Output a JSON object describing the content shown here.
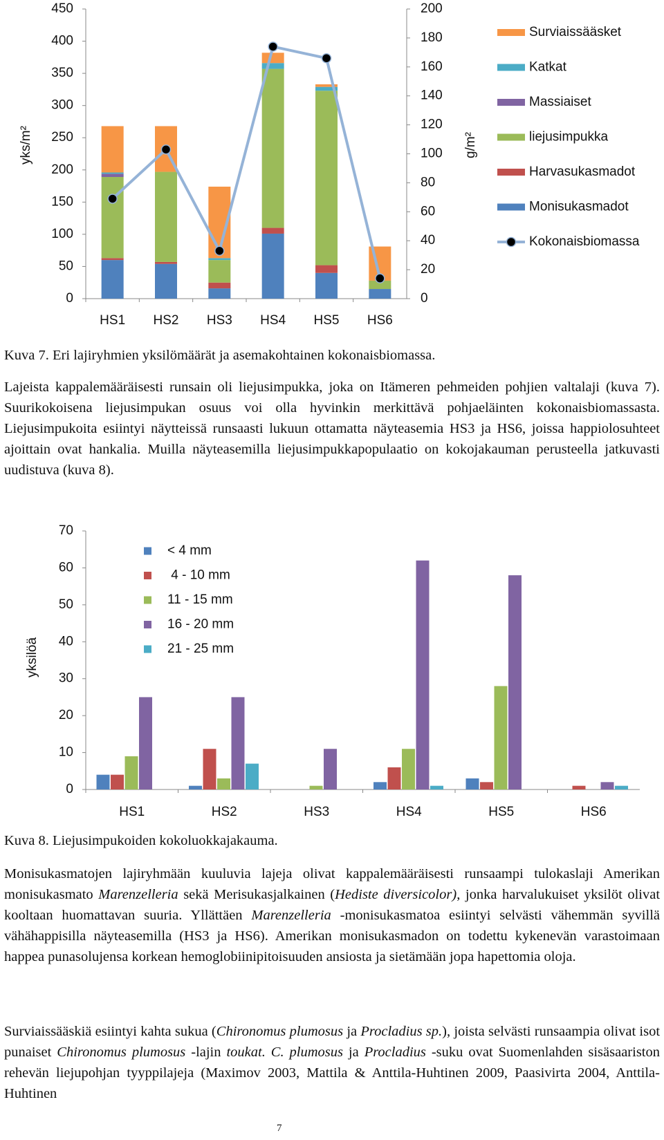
{
  "chart_data": [
    {
      "type": "bar",
      "stacked": true,
      "ylabel": "yks/m²",
      "y2label": "g/m²",
      "categories": [
        "HS1",
        "HS2",
        "HS3",
        "HS4",
        "HS5",
        "HS6"
      ],
      "ylim": [
        0,
        450
      ],
      "yticks": [
        0,
        50,
        100,
        150,
        200,
        250,
        300,
        350,
        400,
        450
      ],
      "y2lim": [
        0,
        200
      ],
      "y2ticks": [
        0,
        20,
        40,
        60,
        80,
        100,
        120,
        140,
        160,
        180,
        200
      ],
      "series": [
        {
          "name": "Monisukasmadot",
          "color": "#4f81bd",
          "values": [
            60,
            54,
            16,
            101,
            40,
            15
          ]
        },
        {
          "name": "Harvasukasmadot",
          "color": "#c0504d",
          "values": [
            3,
            3,
            9,
            9,
            12,
            0
          ]
        },
        {
          "name": "liejusimpukka",
          "color": "#9bbb59",
          "values": [
            126,
            140,
            35,
            247,
            271,
            13
          ]
        },
        {
          "name": "Massiaiset",
          "color": "#8064a2",
          "values": [
            5,
            0,
            0,
            0,
            0,
            0
          ]
        },
        {
          "name": "Katkat",
          "color": "#4bacc6",
          "values": [
            2,
            0,
            3,
            9,
            6,
            0
          ]
        },
        {
          "name": "Surviaissääsket",
          "color": "#f79646",
          "values": [
            72,
            71,
            111,
            16,
            4,
            53
          ]
        },
        {
          "name": "Kokonaisbiomassa",
          "type": "line",
          "axis": "y2",
          "color": "#95b3d7",
          "marker_color": "#000000",
          "values": [
            69,
            103,
            33,
            174,
            166,
            14
          ]
        }
      ]
    },
    {
      "type": "bar",
      "ylabel": "yksilöä",
      "categories": [
        "HS1",
        "HS2",
        "HS3",
        "HS4",
        "HS5",
        "HS6"
      ],
      "ylim": [
        0,
        70
      ],
      "yticks": [
        0,
        10,
        20,
        30,
        40,
        50,
        60,
        70
      ],
      "series": [
        {
          "name": "< 4 mm",
          "color": "#4f81bd",
          "values": [
            4,
            1,
            0,
            2,
            3,
            0
          ]
        },
        {
          "name": " 4 - 10 mm",
          "color": "#c0504d",
          "values": [
            4,
            11,
            0,
            6,
            2,
            1
          ]
        },
        {
          "name": "11 - 15 mm",
          "color": "#9bbb59",
          "values": [
            9,
            3,
            1,
            11,
            28,
            0
          ]
        },
        {
          "name": "16 - 20 mm",
          "color": "#8064a2",
          "values": [
            25,
            25,
            11,
            62,
            58,
            2
          ]
        },
        {
          "name": "21 - 25 mm",
          "color": "#4bacc6",
          "values": [
            0,
            7,
            0,
            1,
            0,
            1
          ]
        }
      ]
    }
  ],
  "document": {
    "caption_1": "Kuva 7. Eri lajiryhmien yksilömäärät ja asemakohtainen kokonaisbiomassa.",
    "paragraph_1": [
      "Lajeista kappalemääräisesti runsain oli liejusimpukka, joka on Itämeren pehmeiden pohjien valtalaji (kuva 7). Suurikokoisena liejusimpukan osuus voi olla hyvinkin merkittävä pohjaeläinten kokonaisbiomassasta. Liejusimpukoita esiintyi näytteissä runsaasti lukuun ottamatta näyteasemia HS3 ja HS6, joissa happiolosuhteet ajoittain ovat hankalia. Muilla näyteasemilla liejusimpukkapopulaatio on kokojakauman perusteella jatkuvasti uudistuva (kuva 8)."
    ],
    "caption_2": "Kuva 8. Liejusimpukoiden kokoluokkajakauma.",
    "paragraph_2": [
      "Monisukasmatojen lajiryhmään kuuluvia lajeja olivat kappalemääräisesti runsaampi tulokaslaji Amerikan monisukasmato ",
      "Marenzelleria",
      " sekä Merisukasjalkainen (",
      "Hediste diversicolor)",
      ", jonka harvalukuiset yksilöt olivat kooltaan huomattavan suuria. Yllättäen ",
      "Marenzelleria",
      " -monisukasmatoa esiintyi selvästi vähemmän syvillä vähähappisilla näyteasemilla (HS3 ja HS6). Amerikan monisukasmadon on todettu kykenevän varastoimaan happea punasolujensa korkean hemoglobiinipitoisuuden ansiosta ja sietämään jopa hapettomia oloja."
    ],
    "paragraph_3": [
      "Surviaissääskiä esiintyi kahta sukua (",
      "Chironomus plumosus",
      " ja ",
      "Procladius sp.",
      "), joista selvästi runsaampia olivat isot punaiset ",
      "Chironomus plumosus",
      " -lajin ",
      "toukat. C. plumosus",
      " ja ",
      "Procladius",
      " -suku ovat Suomenlahden sisäsaariston rehevän liejupohjan tyyppilajeja (Maximov 2003, Mattila & Anttila-Huhtinen 2009, Paasivirta 2004, Anttila-Huhtinen"
    ],
    "page_number": "7"
  }
}
